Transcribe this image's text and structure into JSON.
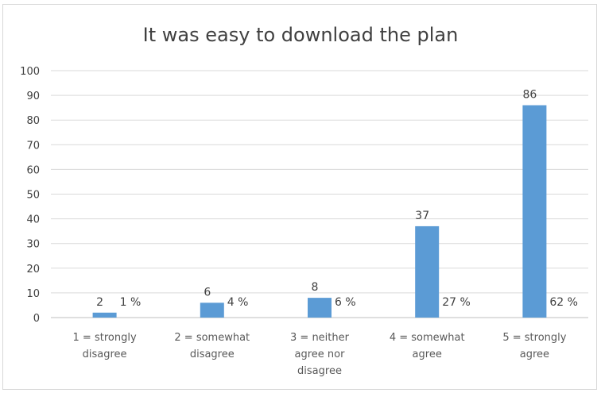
{
  "chart_data": {
    "type": "bar",
    "title": "It was easy to download the plan",
    "xlabel": "",
    "ylabel": "",
    "ylim": [
      0,
      100
    ],
    "yticks": [
      "0",
      "10",
      "20",
      "30",
      "40",
      "50",
      "60",
      "70",
      "80",
      "90",
      "100"
    ],
    "categories": [
      [
        "1 = strongly",
        "disagree"
      ],
      [
        "2 = somewhat",
        "disagree"
      ],
      [
        "3 = neither",
        "agree nor",
        "disagree"
      ],
      [
        "4 = somewhat",
        "agree"
      ],
      [
        "5 = strongly",
        "agree"
      ]
    ],
    "values": [
      2,
      6,
      8,
      37,
      86
    ],
    "value_labels": [
      "2",
      "6",
      "8",
      "37",
      "86"
    ],
    "percent_labels": [
      "1 %",
      "4 %",
      "6 %",
      "27 %",
      "62 %"
    ],
    "bar_color": "#5b9bd5",
    "gridlines": true,
    "legend": "none"
  }
}
